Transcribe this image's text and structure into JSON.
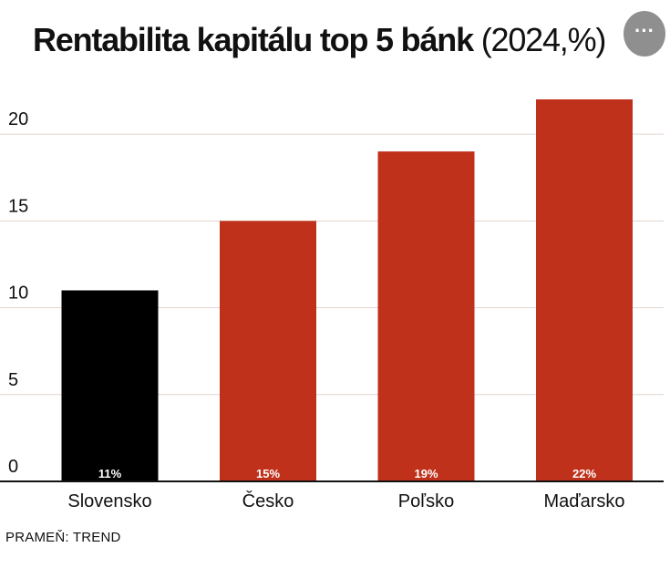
{
  "title_main": "Rentabilita kapitálu top 5 bánk",
  "title_sub": "(2024,%)",
  "source": "PRAMEŇ:  TREND",
  "more_button_label": "···",
  "colors": {
    "highlight": "#000000",
    "bars": "#c0311b",
    "grid": "#e3d5cf",
    "baseline": "#111111",
    "value_label": "#ffffff"
  },
  "chart_data": {
    "type": "bar",
    "categories": [
      "Slovensko",
      "Česko",
      "Poľsko",
      "Maďarsko"
    ],
    "values": [
      11,
      15,
      19,
      22
    ],
    "value_labels": [
      "11%",
      "15%",
      "19%",
      "22%"
    ],
    "highlight_index": 0,
    "yticks": [
      0,
      5,
      10,
      15,
      20
    ],
    "ylim": [
      0,
      22
    ],
    "grid": true,
    "title": "Rentabilita kapitálu top 5 bánk (2024,%)",
    "xlabel": "",
    "ylabel": ""
  }
}
